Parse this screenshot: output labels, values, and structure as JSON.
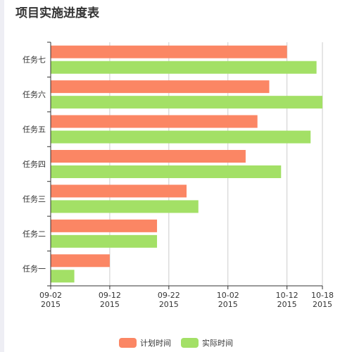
{
  "title": "项目实施进度表",
  "chart_data": {
    "type": "bar",
    "orientation": "horizontal",
    "title": "项目实施进度表",
    "categories": [
      "任务一",
      "任务二",
      "任务三",
      "任务四",
      "任务五",
      "任务六",
      "任务七"
    ],
    "x_axis": {
      "type": "time",
      "range": [
        "2015-09-02",
        "2015-10-18"
      ],
      "ticks": [
        "2015-09-02",
        "2015-09-12",
        "2015-09-22",
        "2015-10-02",
        "2015-10-12",
        "2015-10-18"
      ],
      "tick_labels": [
        [
          "09-02",
          "2015"
        ],
        [
          "09-12",
          "2015"
        ],
        [
          "09-22",
          "2015"
        ],
        [
          "10-02",
          "2015"
        ],
        [
          "10-12",
          "2015"
        ],
        [
          "10-18",
          "2015"
        ]
      ]
    },
    "series": [
      {
        "name": "计划时间",
        "color": "#fb8664",
        "values": [
          "2015-09-12",
          "2015-09-20",
          "2015-09-25",
          "2015-10-05",
          "2015-10-07",
          "2015-10-09",
          "2015-10-12"
        ]
      },
      {
        "name": "实际时间",
        "color": "#a3e066",
        "values": [
          "2015-09-06",
          "2015-09-20",
          "2015-09-27",
          "2015-10-11",
          "2015-10-16",
          "2015-10-18",
          "2015-10-17"
        ]
      }
    ],
    "grid": true,
    "legend_position": "bottom-center"
  }
}
